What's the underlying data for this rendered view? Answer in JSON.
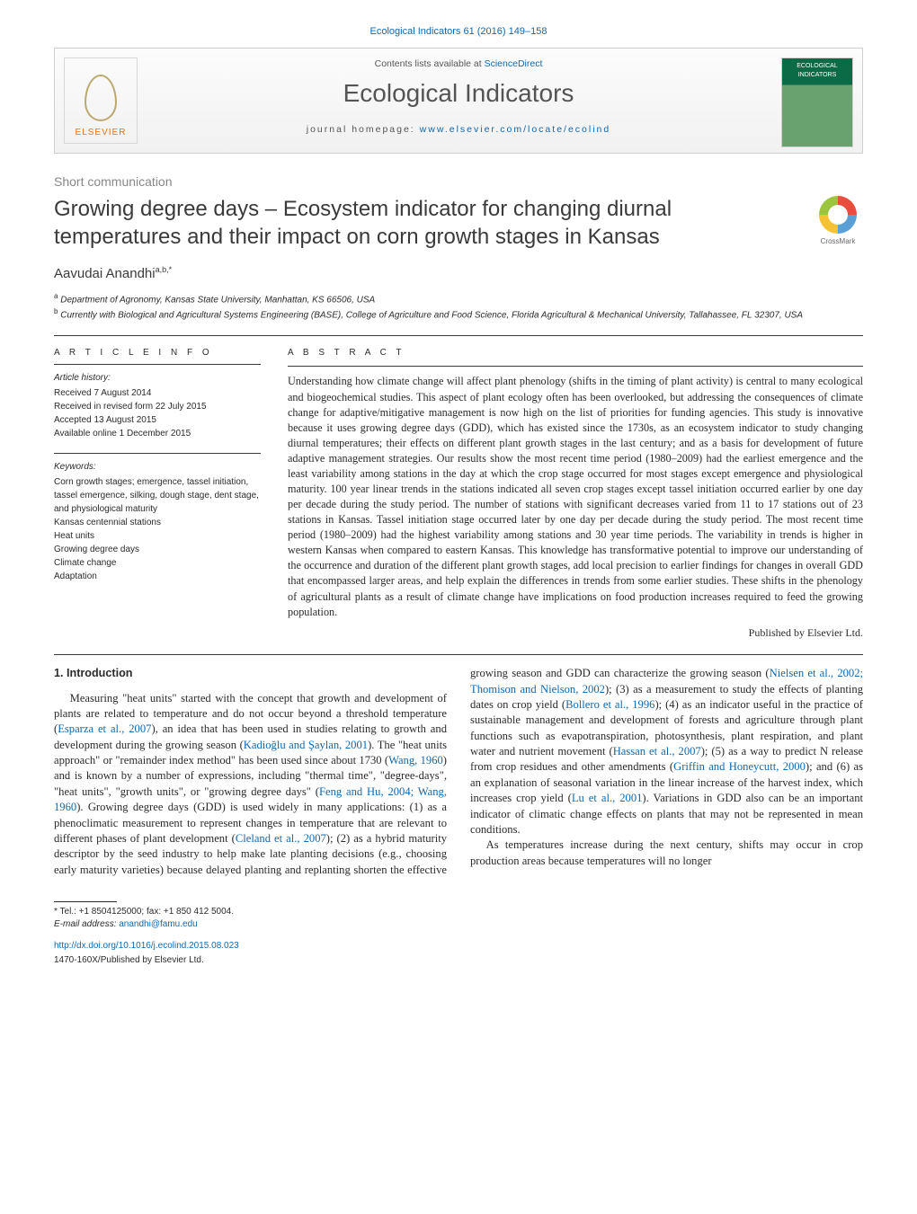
{
  "colors": {
    "link": "#1068b0",
    "text": "#2b2b2b",
    "muted": "#888888",
    "rule": "#3a3a3a",
    "publisher_orange": "#e9711c",
    "masthead_border": "#cfcfcf"
  },
  "typography": {
    "body_font": "Times New Roman",
    "ui_font": "Arial",
    "body_size_pt": 9.5,
    "title_size_pt": 18,
    "journal_title_size_pt": 21
  },
  "top_ref": {
    "journal_link_text": "Ecological Indicators",
    "issue_text": " 61 (2016) 149–158"
  },
  "masthead": {
    "publisher_name": "ELSEVIER",
    "cover_label": "ECOLOGICAL INDICATORS",
    "contents_prefix": "Contents lists available at ",
    "contents_link": "ScienceDirect",
    "journal_title": "Ecological Indicators",
    "homepage_prefix": "journal homepage: ",
    "homepage_url": "www.elsevier.com/locate/ecolind"
  },
  "article_type": "Short communication",
  "title": "Growing degree days – Ecosystem indicator for changing diurnal temperatures and their impact on corn growth stages in Kansas",
  "crossmark_label": "CrossMark",
  "authors_html": "Aavudai Anandhi",
  "author_sup": "a,b,*",
  "affiliations": [
    {
      "sup": "a",
      "text": "Department of Agronomy, Kansas State University, Manhattan, KS 66506, USA"
    },
    {
      "sup": "b",
      "text": "Currently with Biological and Agricultural Systems Engineering (BASE), College of Agriculture and Food Science, Florida Agricultural & Mechanical University, Tallahassee, FL 32307, USA"
    }
  ],
  "article_info": {
    "heading": "A R T I C L E    I N F O",
    "history_head": "Article history:",
    "history": [
      "Received 7 August 2014",
      "Received in revised form 22 July 2015",
      "Accepted 13 August 2015",
      "Available online 1 December 2015"
    ],
    "keywords_head": "Keywords:",
    "keywords": [
      "Corn growth stages; emergence, tassel initiation, tassel emergence, silking, dough stage, dent stage, and physiological maturity",
      "Kansas centennial stations",
      "Heat units",
      "Growing degree days",
      "Climate change",
      "Adaptation"
    ]
  },
  "abstract": {
    "heading": "A B S T R A C T",
    "text": "Understanding how climate change will affect plant phenology (shifts in the timing of plant activity) is central to many ecological and biogeochemical studies. This aspect of plant ecology often has been overlooked, but addressing the consequences of climate change for adaptive/mitigative management is now high on the list of priorities for funding agencies. This study is innovative because it uses growing degree days (GDD), which has existed since the 1730s, as an ecosystem indicator to study changing diurnal temperatures; their effects on different plant growth stages in the last century; and as a basis for development of future adaptive management strategies. Our results show the most recent time period (1980–2009) had the earliest emergence and the least variability among stations in the day at which the crop stage occurred for most stages except emergence and physiological maturity. 100 year linear trends in the stations indicated all seven crop stages except tassel initiation occurred earlier by one day per decade during the study period. The number of stations with significant decreases varied from 11 to 17 stations out of 23 stations in Kansas. Tassel initiation stage occurred later by one day per decade during the study period. The most recent time period (1980–2009) had the highest variability among stations and 30 year time periods. The variability in trends is higher in western Kansas when compared to eastern Kansas. This knowledge has transformative potential to improve our understanding of the occurrence and duration of the different plant growth stages, add local precision to earlier findings for changes in overall GDD that encompassed larger areas, and help explain the differences in trends from some earlier studies. These shifts in the phenology of agricultural plants as a result of climate change have implications on food production increases required to feed the growing population.",
    "pub_note": "Published by Elsevier Ltd."
  },
  "section1": {
    "heading": "1.  Introduction",
    "p1_a": "Measuring \"heat units\" started with the concept that growth and development of plants are related to temperature and do not occur beyond a threshold temperature (",
    "p1_ref1": "Esparza et al., 2007",
    "p1_b": "), an idea that has been used in studies relating to growth and development during the growing season (",
    "p1_ref2": "Kadioğlu and Şaylan, 2001",
    "p1_c": "). The \"heat units approach\" or \"remainder index method\" has been used since about 1730 (",
    "p1_ref3": "Wang, 1960",
    "p1_d": ") and is known by a number of expressions, including \"thermal time\", \"degree-days\", \"heat units\", \"growth units\", or \"growing degree days\" (",
    "p1_ref4": "Feng and Hu, 2004; Wang, 1960",
    "p1_e": "). Growing degree days (GDD) is used widely in many applications: (1) as a phenoclimatic measurement to represent changes in temperature that are relevant to different phases of plant development (",
    "p1_ref5": "Cleland et al., 2007",
    "p1_f": "); (2) as a hybrid maturity ",
    "p2_a": "descriptor by the seed industry to help make late planting decisions (e.g., choosing early maturity varieties) because delayed planting and replanting shorten the effective growing season and GDD can characterize the growing season (",
    "p2_ref1": "Nielsen et al., 2002; Thomison and Nielson, 2002",
    "p2_b": "); (3) as a measurement to study the effects of planting dates on crop yield (",
    "p2_ref2": "Bollero et al., 1996",
    "p2_c": "); (4) as an indicator useful in the practice of sustainable management and development of forests and agriculture through plant functions such as evapotranspiration, photosynthesis, plant respiration, and plant water and nutrient movement (",
    "p2_ref3": "Hassan et al., 2007",
    "p2_d": "); (5) as a way to predict N release from crop residues and other amendments (",
    "p2_ref4": "Griffin and Honeycutt, 2000",
    "p2_e": "); and (6) as an explanation of seasonal variation in the linear increase of the harvest index, which increases crop yield (",
    "p2_ref5": "Lu et al., 2001",
    "p2_f": "). Variations in GDD also can be an important indicator of climatic change effects on plants that may not be represented in mean conditions.",
    "p3": "As temperatures increase during the next century, shifts may occur in crop production areas because temperatures will no longer"
  },
  "footnotes": {
    "corr_marker": "*",
    "corr_text": " Tel.: +1 8504125000; fax: +1 850 412 5004.",
    "email_label": "E-mail address: ",
    "email": "anandhi@famu.edu",
    "doi": "http://dx.doi.org/10.1016/j.ecolind.2015.08.023",
    "copyright": "1470-160X/Published by Elsevier Ltd."
  }
}
